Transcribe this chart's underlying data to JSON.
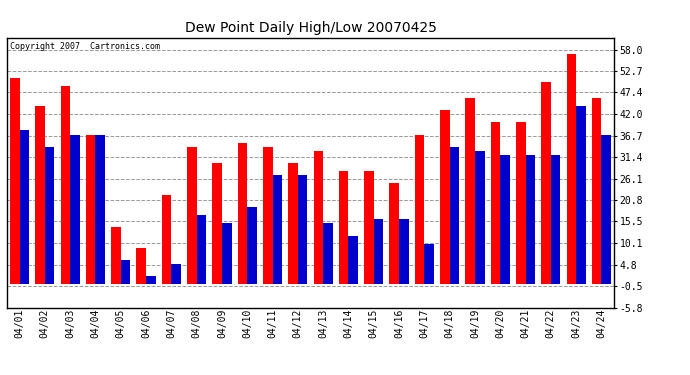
{
  "title": "Dew Point Daily High/Low 20070425",
  "copyright": "Copyright 2007  Cartronics.com",
  "categories": [
    "04/01",
    "04/02",
    "04/03",
    "04/04",
    "04/05",
    "04/06",
    "04/07",
    "04/08",
    "04/09",
    "04/10",
    "04/11",
    "04/12",
    "04/13",
    "04/14",
    "04/15",
    "04/16",
    "04/17",
    "04/18",
    "04/19",
    "04/20",
    "04/21",
    "04/22",
    "04/23",
    "04/24"
  ],
  "high_values": [
    51,
    44,
    49,
    37,
    14,
    9,
    22,
    34,
    30,
    35,
    34,
    30,
    33,
    28,
    28,
    25,
    37,
    43,
    46,
    40,
    40,
    50,
    57,
    46
  ],
  "low_values": [
    38,
    34,
    37,
    37,
    6,
    2,
    5,
    17,
    15,
    19,
    27,
    27,
    15,
    12,
    16,
    16,
    10,
    34,
    33,
    32,
    32,
    32,
    44,
    37
  ],
  "high_color": "#ff0000",
  "low_color": "#0000cc",
  "bg_color": "#ffffff",
  "plot_bg_color": "#ffffff",
  "grid_color": "#999999",
  "ytick_labels": [
    "-5.8",
    "-0.5",
    "4.8",
    "10.1",
    "15.5",
    "20.8",
    "26.1",
    "31.4",
    "36.7",
    "42.0",
    "47.4",
    "52.7",
    "58.0"
  ],
  "ytick_values": [
    -5.8,
    -0.5,
    4.8,
    10.1,
    15.5,
    20.8,
    26.1,
    31.4,
    36.7,
    42.0,
    47.4,
    52.7,
    58.0
  ],
  "ylim_min": -5.8,
  "ylim_max": 61.0,
  "bar_width": 0.38,
  "title_fontsize": 10,
  "tick_fontsize": 7,
  "copyright_fontsize": 6
}
